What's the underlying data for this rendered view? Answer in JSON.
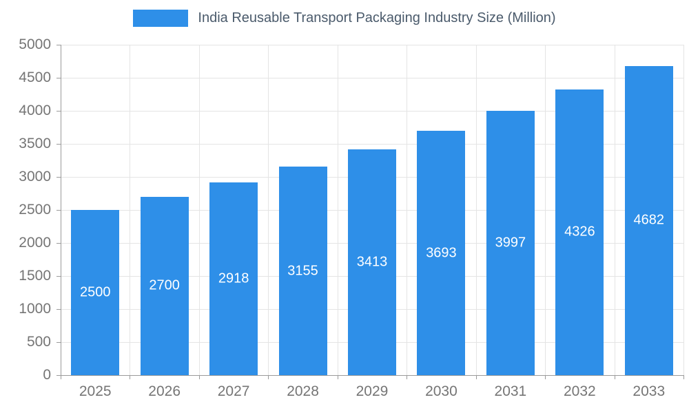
{
  "chart_data": {
    "type": "bar",
    "title": "India Reusable Transport Packaging Industry Size (Million)",
    "categories": [
      "2025",
      "2026",
      "2027",
      "2028",
      "2029",
      "2030",
      "2031",
      "2032",
      "2033"
    ],
    "values": [
      2500,
      2700,
      2918,
      3155,
      3413,
      3693,
      3997,
      4326,
      4682
    ],
    "xlabel": "",
    "ylabel": "",
    "ylim": [
      0,
      5000
    ],
    "ytick_step": 500,
    "ytick_labels": [
      "0",
      "500",
      "1000",
      "1500",
      "2000",
      "2500",
      "3000",
      "3500",
      "4000",
      "4500",
      "5000"
    ],
    "grid": "on",
    "legend_position": "top",
    "colors": {
      "bar": "#2E8FE8",
      "value_label": "#ffffff",
      "title": "#4A5A6B",
      "axis_label": "#757575",
      "grid": "#E4E4E4",
      "axis_line": "#9A9A9A"
    }
  }
}
